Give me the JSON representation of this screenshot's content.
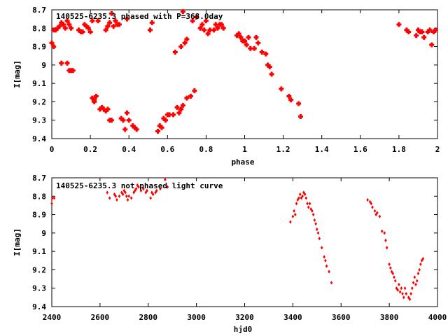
{
  "chart_data": [
    {
      "type": "scatter",
      "title": "140525-6235.3 phased with P=368.0day",
      "xlabel": "phase",
      "ylabel": "I[mag]",
      "xlim": [
        0,
        2
      ],
      "ylim": [
        9.4,
        8.7
      ],
      "y_inverted": true,
      "grid": false,
      "legend": "none",
      "marker_color": "#ff0000",
      "xticks": [
        "0",
        "0.2",
        "0.4",
        "0.6",
        "0.8",
        "1",
        "1.2",
        "1.4",
        "1.6",
        "1.8",
        "2"
      ],
      "yticks": [
        "8.7",
        "8.8",
        "8.9",
        "9",
        "9.1",
        "9.2",
        "9.3",
        "9.4"
      ],
      "points": [
        [
          0.0,
          8.88
        ],
        [
          0.01,
          8.9
        ],
        [
          0.01,
          8.81
        ],
        [
          0.02,
          8.81
        ],
        [
          0.03,
          8.8
        ],
        [
          0.04,
          8.79
        ],
        [
          0.05,
          8.77
        ],
        [
          0.05,
          8.99
        ],
        [
          0.06,
          8.78
        ],
        [
          0.07,
          8.8
        ],
        [
          0.08,
          8.76
        ],
        [
          0.08,
          8.99
        ],
        [
          0.09,
          8.78
        ],
        [
          0.09,
          9.03
        ],
        [
          0.1,
          8.8
        ],
        [
          0.1,
          9.03
        ],
        [
          0.11,
          9.03
        ],
        [
          0.14,
          8.81
        ],
        [
          0.15,
          8.82
        ],
        [
          0.16,
          8.82
        ],
        [
          0.17,
          8.78
        ],
        [
          0.18,
          8.79
        ],
        [
          0.19,
          8.8
        ],
        [
          0.2,
          8.82
        ],
        [
          0.21,
          9.18
        ],
        [
          0.21,
          8.76
        ],
        [
          0.22,
          9.2
        ],
        [
          0.22,
          9.19
        ],
        [
          0.23,
          9.17
        ],
        [
          0.24,
          8.76
        ],
        [
          0.25,
          9.24
        ],
        [
          0.26,
          9.23
        ],
        [
          0.27,
          9.24
        ],
        [
          0.28,
          9.25
        ],
        [
          0.28,
          8.81
        ],
        [
          0.29,
          9.24
        ],
        [
          0.29,
          8.79
        ],
        [
          0.3,
          8.77
        ],
        [
          0.3,
          9.3
        ],
        [
          0.31,
          9.3
        ],
        [
          0.31,
          8.72
        ],
        [
          0.32,
          8.79
        ],
        [
          0.33,
          8.76
        ],
        [
          0.34,
          8.78
        ],
        [
          0.35,
          8.78
        ],
        [
          0.36,
          9.29
        ],
        [
          0.37,
          9.3
        ],
        [
          0.38,
          9.35
        ],
        [
          0.39,
          9.26
        ],
        [
          0.39,
          8.75
        ],
        [
          0.4,
          9.3
        ],
        [
          0.42,
          9.33
        ],
        [
          0.43,
          9.34
        ],
        [
          0.44,
          9.35
        ],
        [
          0.51,
          8.81
        ],
        [
          0.52,
          8.77
        ],
        [
          0.55,
          9.36
        ],
        [
          0.56,
          9.33
        ],
        [
          0.57,
          9.34
        ],
        [
          0.58,
          9.29
        ],
        [
          0.59,
          9.3
        ],
        [
          0.6,
          9.27
        ],
        [
          0.61,
          9.27
        ],
        [
          0.63,
          9.27
        ],
        [
          0.64,
          8.93
        ],
        [
          0.65,
          9.23
        ],
        [
          0.66,
          9.26
        ],
        [
          0.67,
          8.9
        ],
        [
          0.67,
          9.24
        ],
        [
          0.68,
          9.22
        ],
        [
          0.68,
          8.71
        ],
        [
          0.69,
          8.88
        ],
        [
          0.7,
          9.18
        ],
        [
          0.7,
          8.86
        ],
        [
          0.72,
          9.17
        ],
        [
          0.73,
          8.76
        ],
        [
          0.74,
          9.14
        ],
        [
          0.75,
          8.74
        ],
        [
          0.77,
          8.8
        ],
        [
          0.78,
          8.78
        ],
        [
          0.79,
          8.81
        ],
        [
          0.8,
          8.76
        ],
        [
          0.81,
          8.83
        ],
        [
          0.82,
          8.81
        ],
        [
          0.84,
          8.81
        ],
        [
          0.85,
          8.78
        ],
        [
          0.86,
          8.8
        ],
        [
          0.87,
          8.78
        ],
        [
          0.88,
          8.78
        ],
        [
          0.89,
          8.8
        ],
        [
          0.96,
          8.84
        ],
        [
          0.97,
          8.83
        ],
        [
          0.98,
          8.85
        ],
        [
          0.99,
          8.87
        ],
        [
          1.0,
          8.87
        ],
        [
          1.01,
          8.89
        ],
        [
          1.02,
          8.85
        ],
        [
          1.03,
          8.91
        ],
        [
          1.05,
          8.91
        ],
        [
          1.06,
          8.85
        ],
        [
          1.07,
          8.88
        ],
        [
          1.09,
          8.93
        ],
        [
          1.11,
          8.94
        ],
        [
          1.12,
          9.0
        ],
        [
          1.13,
          9.01
        ],
        [
          1.14,
          9.05
        ],
        [
          1.19,
          9.13
        ],
        [
          1.23,
          9.17
        ],
        [
          1.24,
          9.19
        ],
        [
          1.28,
          9.21
        ],
        [
          1.29,
          9.28
        ],
        [
          1.8,
          8.78
        ],
        [
          1.84,
          8.81
        ],
        [
          1.85,
          8.82
        ],
        [
          1.89,
          8.84
        ],
        [
          1.9,
          8.81
        ],
        [
          1.91,
          8.82
        ],
        [
          1.92,
          8.82
        ],
        [
          1.93,
          8.85
        ],
        [
          1.95,
          8.82
        ],
        [
          1.96,
          8.81
        ],
        [
          1.97,
          8.89
        ],
        [
          1.98,
          8.82
        ],
        [
          1.99,
          8.81
        ]
      ]
    },
    {
      "type": "scatter",
      "title": "140525-6235.3 not phased light curve",
      "xlabel": "hjd0",
      "ylabel": "I[mag]",
      "xlim": [
        2400,
        4000
      ],
      "ylim": [
        9.4,
        8.7
      ],
      "y_inverted": true,
      "grid": false,
      "legend": "none",
      "marker_color": "#ff0000",
      "xticks": [
        "2400",
        "2600",
        "2800",
        "3000",
        "3200",
        "3400",
        "3600",
        "3800",
        "4000"
      ],
      "yticks": [
        "8.7",
        "8.8",
        "8.9",
        "9",
        "9.1",
        "9.2",
        "9.3",
        "9.4"
      ],
      "points": [
        [
          2400,
          8.84
        ],
        [
          2402,
          8.81
        ],
        [
          2410,
          8.81
        ],
        [
          2630,
          8.78
        ],
        [
          2640,
          8.81
        ],
        [
          2660,
          8.79
        ],
        [
          2665,
          8.8
        ],
        [
          2670,
          8.82
        ],
        [
          2680,
          8.8
        ],
        [
          2690,
          8.78
        ],
        [
          2695,
          8.79
        ],
        [
          2700,
          8.77
        ],
        [
          2705,
          8.78
        ],
        [
          2710,
          8.8
        ],
        [
          2715,
          8.82
        ],
        [
          2720,
          8.8
        ],
        [
          2730,
          8.81
        ],
        [
          2740,
          8.78
        ],
        [
          2745,
          8.77
        ],
        [
          2750,
          8.76
        ],
        [
          2755,
          8.74
        ],
        [
          2760,
          8.75
        ],
        [
          2770,
          8.77
        ],
        [
          2780,
          8.76
        ],
        [
          2790,
          8.78
        ],
        [
          2795,
          8.77
        ],
        [
          2810,
          8.81
        ],
        [
          2815,
          8.78
        ],
        [
          2820,
          8.79
        ],
        [
          2830,
          8.78
        ],
        [
          2835,
          8.77
        ],
        [
          2850,
          8.76
        ],
        [
          2870,
          8.71
        ],
        [
          2880,
          8.75
        ],
        [
          3390,
          8.94
        ],
        [
          3400,
          8.91
        ],
        [
          3405,
          8.88
        ],
        [
          3410,
          8.9
        ],
        [
          3415,
          8.84
        ],
        [
          3420,
          8.82
        ],
        [
          3425,
          8.81
        ],
        [
          3430,
          8.79
        ],
        [
          3435,
          8.81
        ],
        [
          3440,
          8.8
        ],
        [
          3445,
          8.78
        ],
        [
          3450,
          8.79
        ],
        [
          3455,
          8.81
        ],
        [
          3460,
          8.84
        ],
        [
          3465,
          8.86
        ],
        [
          3470,
          8.84
        ],
        [
          3475,
          8.87
        ],
        [
          3480,
          8.88
        ],
        [
          3485,
          8.9
        ],
        [
          3490,
          8.93
        ],
        [
          3495,
          8.95
        ],
        [
          3500,
          8.98
        ],
        [
          3505,
          9.0
        ],
        [
          3510,
          9.03
        ],
        [
          3520,
          9.08
        ],
        [
          3530,
          9.13
        ],
        [
          3535,
          9.15
        ],
        [
          3540,
          9.18
        ],
        [
          3550,
          9.21
        ],
        [
          3560,
          9.27
        ],
        [
          3710,
          8.82
        ],
        [
          3720,
          8.83
        ],
        [
          3725,
          8.84
        ],
        [
          3730,
          8.86
        ],
        [
          3740,
          8.88
        ],
        [
          3745,
          8.9
        ],
        [
          3750,
          8.89
        ],
        [
          3760,
          8.91
        ],
        [
          3770,
          8.99
        ],
        [
          3780,
          9.0
        ],
        [
          3785,
          9.04
        ],
        [
          3790,
          9.08
        ],
        [
          3800,
          9.17
        ],
        [
          3805,
          9.19
        ],
        [
          3810,
          9.21
        ],
        [
          3815,
          9.22
        ],
        [
          3820,
          9.24
        ],
        [
          3825,
          9.26
        ],
        [
          3830,
          9.3
        ],
        [
          3835,
          9.31
        ],
        [
          3840,
          9.28
        ],
        [
          3845,
          9.32
        ],
        [
          3850,
          9.3
        ],
        [
          3855,
          9.33
        ],
        [
          3860,
          9.35
        ],
        [
          3865,
          9.3
        ],
        [
          3870,
          9.33
        ],
        [
          3880,
          9.35
        ],
        [
          3885,
          9.36
        ],
        [
          3890,
          9.33
        ],
        [
          3895,
          9.3
        ],
        [
          3900,
          9.27
        ],
        [
          3905,
          9.24
        ],
        [
          3910,
          9.28
        ],
        [
          3915,
          9.26
        ],
        [
          3920,
          9.22
        ],
        [
          3925,
          9.2
        ],
        [
          3930,
          9.17
        ],
        [
          3935,
          9.15
        ],
        [
          3940,
          9.14
        ]
      ]
    }
  ]
}
